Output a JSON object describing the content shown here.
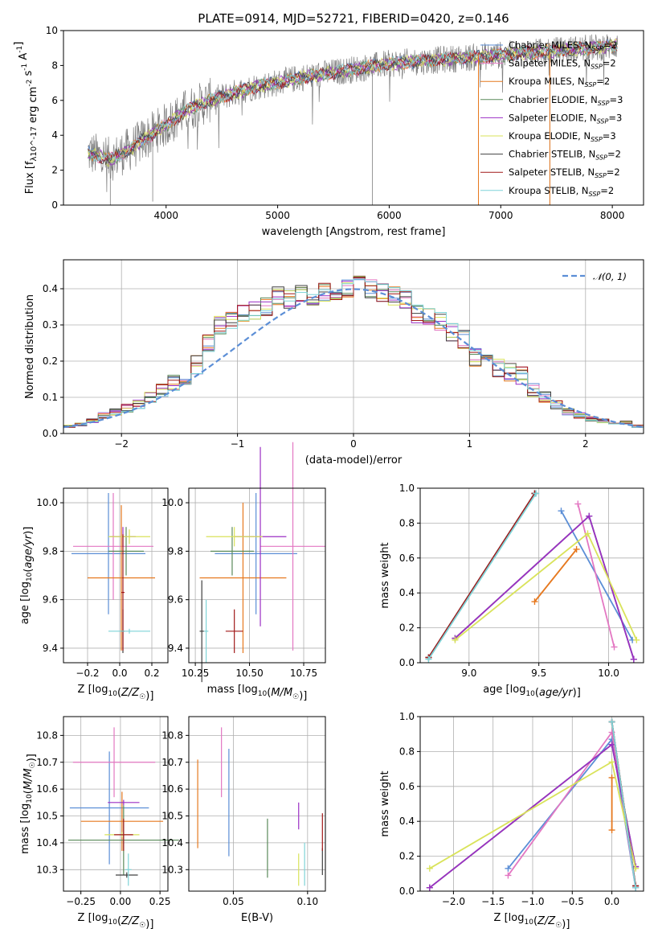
{
  "title": "PLATE=0914, MJD=52721, FIBERID=0420, z=0.146",
  "colors": {
    "Chabrier MILES": "#5b8ed6",
    "Salpeter MILES": "#e377c2",
    "Kroupa MILES": "#e6781e",
    "Chabrier ELODIE": "#5a8a5a",
    "Salpeter ELODIE": "#9b2fc4",
    "Kroupa ELODIE": "#d9e35a",
    "Chabrier STELIB": "#404040",
    "Salpeter STELIB": "#a01818",
    "Kroupa STELIB": "#7fd4d8",
    "data": "#7f7f7f",
    "normal": "#5b8ed6",
    "grid": "#b0b0b0"
  },
  "chart_data": [
    {
      "id": "spectrum",
      "type": "line",
      "xlabel": "wavelength [Angstrom, rest frame]",
      "ylabel": "Flux [f_λ10^-17 erg cm^-2 s^-1 A^-1]",
      "xlim": [
        3080,
        8280
      ],
      "ylim": [
        0,
        10
      ],
      "xticks": [
        4000,
        5000,
        6000,
        7000,
        8000
      ],
      "yticks": [
        0,
        2,
        4,
        6,
        8,
        10
      ],
      "grid": false,
      "legend_position": "top-right",
      "legend": [
        {
          "name": "Chabrier MILES, N_SSP=2",
          "base": "Chabrier MILES, N",
          "sub": "SSP",
          "tail": "=2",
          "key": "Chabrier MILES"
        },
        {
          "name": "Salpeter MILES, N_SSP=2",
          "base": "Salpeter MILES, N",
          "sub": "SSP",
          "tail": "=2",
          "key": "Salpeter MILES"
        },
        {
          "name": "Kroupa MILES, N_SSP=2",
          "base": "Kroupa MILES, N",
          "sub": "SSP",
          "tail": "=2",
          "key": "Kroupa MILES"
        },
        {
          "name": "Chabrier ELODIE, N_SSP=3",
          "base": "Chabrier ELODIE, N",
          "sub": "SSP",
          "tail": "=3",
          "key": "Chabrier ELODIE"
        },
        {
          "name": "Salpeter ELODIE, N_SSP=3",
          "base": "Salpeter ELODIE, N",
          "sub": "SSP",
          "tail": "=3",
          "key": "Salpeter ELODIE"
        },
        {
          "name": "Kroupa ELODIE, N_SSP=3",
          "base": "Kroupa ELODIE, N",
          "sub": "SSP",
          "tail": "=3",
          "key": "Kroupa ELODIE"
        },
        {
          "name": "Chabrier STELIB, N_SSP=2",
          "base": "Chabrier STELIB, N",
          "sub": "SSP",
          "tail": "=2",
          "key": "Chabrier STELIB"
        },
        {
          "name": "Salpeter STELIB, N_SSP=2",
          "base": "Salpeter STELIB, N",
          "sub": "SSP",
          "tail": "=2",
          "key": "Salpeter STELIB"
        },
        {
          "name": "Kroupa STELIB, N_SSP=2",
          "base": "Kroupa STELIB, N",
          "sub": "SSP",
          "tail": "=2",
          "key": "Kroupa STELIB"
        }
      ],
      "continuum": [
        [
          3300,
          3.0
        ],
        [
          3500,
          2.6
        ],
        [
          3700,
          3.3
        ],
        [
          3900,
          4.2
        ],
        [
          4000,
          4.6
        ],
        [
          4200,
          5.5
        ],
        [
          4400,
          6.0
        ],
        [
          4600,
          6.4
        ],
        [
          4800,
          6.8
        ],
        [
          5000,
          7.0
        ],
        [
          5200,
          7.3
        ],
        [
          5400,
          7.5
        ],
        [
          5600,
          7.7
        ],
        [
          5800,
          7.9
        ],
        [
          6000,
          8.1
        ],
        [
          6200,
          8.2
        ],
        [
          6400,
          8.3
        ],
        [
          6600,
          8.4
        ],
        [
          6800,
          8.5
        ],
        [
          7000,
          8.6
        ],
        [
          7200,
          8.7
        ],
        [
          7400,
          8.8
        ],
        [
          7600,
          8.9
        ],
        [
          7800,
          9.0
        ],
        [
          8000,
          9.1
        ],
        [
          8050,
          9.2
        ]
      ],
      "model_x_range": [
        3300,
        8050
      ],
      "data_x_range": [
        3300,
        8050
      ]
    },
    {
      "id": "residuals",
      "type": "histogram",
      "xlabel": "(data-model)/error",
      "ylabel": "Normed distribution",
      "xlim": [
        -2.5,
        2.5
      ],
      "ylim": [
        0,
        0.48
      ],
      "xticks": [
        -2,
        -1,
        0,
        1,
        2
      ],
      "xticklabels": [
        "−2",
        "−1",
        "0",
        "1",
        "2"
      ],
      "yticks": [
        0.0,
        0.1,
        0.2,
        0.3,
        0.4
      ],
      "yticklabels": [
        "0.0",
        "0.1",
        "0.2",
        "0.3",
        "0.4"
      ],
      "grid": true,
      "legend_position": "top-right",
      "legend": [
        {
          "name": "𝒩(0, 1)",
          "label": "𝒩(0, 1)",
          "style": "dashed"
        }
      ],
      "bin_edges_start": -2.5,
      "bin_width": 0.1,
      "envelope": [
        0.02,
        0.025,
        0.035,
        0.05,
        0.06,
        0.07,
        0.08,
        0.1,
        0.12,
        0.14,
        0.16,
        0.19,
        0.25,
        0.3,
        0.31,
        0.33,
        0.34,
        0.35,
        0.38,
        0.37,
        0.39,
        0.38,
        0.39,
        0.38,
        0.4,
        0.41,
        0.4,
        0.39,
        0.38,
        0.37,
        0.33,
        0.32,
        0.31,
        0.28,
        0.26,
        0.21,
        0.2,
        0.18,
        0.17,
        0.16,
        0.12,
        0.1,
        0.08,
        0.06,
        0.05,
        0.04,
        0.035,
        0.03,
        0.03,
        0.02
      ]
    },
    {
      "id": "age-vs-Z",
      "type": "errorbar",
      "xlabel": "Z [log10(Z/Z☉)]",
      "ylabel": "age [log10(age/yr)]",
      "xlim": [
        -0.35,
        0.3
      ],
      "ylim": [
        9.34,
        10.06
      ],
      "xticks": [
        -0.2,
        0.0,
        0.2
      ],
      "xticklabels": [
        "−0.2",
        "0.0",
        "0.2"
      ],
      "yticks": [
        9.4,
        9.6,
        9.8,
        10.0
      ],
      "yticklabels": [
        "9.4",
        "9.6",
        "9.8",
        "10.0"
      ],
      "grid": true,
      "points": [
        {
          "key": "Chabrier MILES",
          "x": -0.07,
          "y": 9.79,
          "xerr": 0.23,
          "yerr": 0.25
        },
        {
          "key": "Salpeter MILES",
          "x": -0.04,
          "y": 9.82,
          "xerr": 0.25,
          "yerr": 0.22
        },
        {
          "key": "Kroupa MILES",
          "x": 0.01,
          "y": 9.69,
          "xerr": 0.21,
          "yerr": 0.3
        },
        {
          "key": "Chabrier ELODIE",
          "x": 0.04,
          "y": 9.8,
          "xerr": 0.11,
          "yerr": 0.1
        },
        {
          "key": "Salpeter ELODIE",
          "x": 0.02,
          "y": 9.86,
          "xerr": 0.08,
          "yerr": 0.04
        },
        {
          "key": "Kroupa ELODIE",
          "x": 0.06,
          "y": 9.86,
          "xerr": 0.13,
          "yerr": 0.03
        },
        {
          "key": "Chabrier STELIB",
          "x": 0.02,
          "y": 9.47,
          "xerr": 0.01,
          "yerr": 0.09
        },
        {
          "key": "Salpeter STELIB",
          "x": 0.02,
          "y": 9.63,
          "xerr": 0.01,
          "yerr": 0.24
        },
        {
          "key": "Kroupa STELIB",
          "x": 0.06,
          "y": 9.47,
          "xerr": 0.13,
          "yerr": 0.01
        }
      ]
    },
    {
      "id": "age-vs-mass",
      "type": "errorbar",
      "xlabel": "mass [log10(M/M☉)]",
      "ylabel": "",
      "xlim": [
        10.22,
        10.85
      ],
      "ylim": [
        9.34,
        10.06
      ],
      "xticks": [
        10.25,
        10.5,
        10.75
      ],
      "xticklabels": [
        "10.25",
        "10.50",
        "10.75"
      ],
      "yticks": [
        9.4,
        9.6,
        9.8,
        10.0
      ],
      "yticklabels": [
        "9.4",
        "9.6",
        "9.8",
        "10.0"
      ],
      "grid": true,
      "points": [
        {
          "key": "Chabrier MILES",
          "x": 10.53,
          "y": 9.79,
          "xerr": 0.19,
          "yerr": 0.25
        },
        {
          "key": "Salpeter MILES",
          "x": 10.7,
          "y": 9.82,
          "xerr": 0.15,
          "yerr": 0.43
        },
        {
          "key": "Kroupa MILES",
          "x": 10.47,
          "y": 9.69,
          "xerr": 0.2,
          "yerr": 0.31
        },
        {
          "key": "Chabrier ELODIE",
          "x": 10.42,
          "y": 9.8,
          "xerr": 0.1,
          "yerr": 0.1
        },
        {
          "key": "Salpeter ELODIE",
          "x": 10.55,
          "y": 9.86,
          "xerr": 0.12,
          "yerr": 0.37
        },
        {
          "key": "Kroupa ELODIE",
          "x": 10.43,
          "y": 9.86,
          "xerr": 0.13,
          "yerr": 0.04
        },
        {
          "key": "Chabrier STELIB",
          "x": 10.28,
          "y": 9.47,
          "xerr": 0.01,
          "yerr": 0.21
        },
        {
          "key": "Salpeter STELIB",
          "x": 10.43,
          "y": 9.47,
          "xerr": 0.04,
          "yerr": 0.09
        },
        {
          "key": "Kroupa STELIB",
          "x": 10.3,
          "y": 9.47,
          "xerr": 0.01,
          "yerr": 0.13
        }
      ]
    },
    {
      "id": "mass-weight-vs-age",
      "type": "line",
      "xlabel": "age [log10(age/yr)]",
      "ylabel": "mass weight",
      "xlim": [
        8.65,
        10.25
      ],
      "ylim": [
        0,
        1
      ],
      "xticks": [
        9.0,
        9.5,
        10.0
      ],
      "xticklabels": [
        "9.0",
        "9.5",
        "10.0"
      ],
      "yticks": [
        0.0,
        0.2,
        0.4,
        0.6,
        0.8,
        1.0
      ],
      "yticklabels": [
        "0.0",
        "0.2",
        "0.4",
        "0.6",
        "0.8",
        "1.0"
      ],
      "grid": true,
      "series": [
        {
          "key": "Chabrier MILES",
          "x": [
            9.66,
            10.17
          ],
          "y": [
            0.87,
            0.13
          ]
        },
        {
          "key": "Salpeter MILES",
          "x": [
            9.78,
            10.04
          ],
          "y": [
            0.91,
            0.09
          ]
        },
        {
          "key": "Kroupa MILES",
          "x": [
            9.47,
            9.77
          ],
          "y": [
            0.35,
            0.65
          ]
        },
        {
          "key": "Chabrier ELODIE",
          "x": [
            8.9,
            9.86,
            10.18
          ],
          "y": [
            0.14,
            0.84,
            0.02
          ]
        },
        {
          "key": "Salpeter ELODIE",
          "x": [
            8.9,
            9.86,
            10.18
          ],
          "y": [
            0.14,
            0.84,
            0.02
          ]
        },
        {
          "key": "Kroupa ELODIE",
          "x": [
            8.9,
            9.85,
            10.2
          ],
          "y": [
            0.13,
            0.74,
            0.13
          ]
        },
        {
          "key": "Chabrier STELIB",
          "x": [
            8.71,
            9.47
          ],
          "y": [
            0.03,
            0.97
          ]
        },
        {
          "key": "Salpeter STELIB",
          "x": [
            8.71,
            9.47
          ],
          "y": [
            0.03,
            0.97
          ]
        },
        {
          "key": "Kroupa STELIB",
          "x": [
            8.71,
            9.48
          ],
          "y": [
            0.02,
            0.97
          ]
        }
      ]
    },
    {
      "id": "mass-vs-Z",
      "type": "errorbar",
      "xlabel": "Z [log10(Z/Z☉)]",
      "ylabel": "mass [log10(M/M☉)]",
      "xlim": [
        -0.36,
        0.3
      ],
      "ylim": [
        10.22,
        10.87
      ],
      "xticks": [
        -0.25,
        0.0,
        0.25
      ],
      "xticklabels": [
        "−0.25",
        "0.00",
        "0.25"
      ],
      "yticks": [
        10.3,
        10.4,
        10.5,
        10.6,
        10.7,
        10.8
      ],
      "yticklabels": [
        "10.3",
        "10.4",
        "10.5",
        "10.6",
        "10.7",
        "10.8"
      ],
      "grid": true,
      "points": [
        {
          "key": "Chabrier MILES",
          "x": -0.07,
          "y": 10.53,
          "xerr": 0.25,
          "yerr": 0.21
        },
        {
          "key": "Salpeter MILES",
          "x": -0.04,
          "y": 10.7,
          "xerr": 0.26,
          "yerr": 0.13
        },
        {
          "key": "Kroupa MILES",
          "x": 0.01,
          "y": 10.48,
          "xerr": 0.26,
          "yerr": 0.11
        },
        {
          "key": "Chabrier ELODIE",
          "x": 0.02,
          "y": 10.41,
          "xerr": 0.35,
          "yerr": 0.13
        },
        {
          "key": "Salpeter ELODIE",
          "x": 0.02,
          "y": 10.55,
          "xerr": 0.1,
          "yerr": 0.01
        },
        {
          "key": "Kroupa ELODIE",
          "x": 0.01,
          "y": 10.43,
          "xerr": 0.11,
          "yerr": 0.01
        },
        {
          "key": "Chabrier STELIB",
          "x": 0.04,
          "y": 10.28,
          "xerr": 0.07,
          "yerr": 0.01
        },
        {
          "key": "Salpeter STELIB",
          "x": 0.02,
          "y": 10.43,
          "xerr": 0.06,
          "yerr": 0.06
        },
        {
          "key": "Kroupa STELIB",
          "x": 0.05,
          "y": 10.3,
          "xerr": 0.02,
          "yerr": 0.06
        }
      ]
    },
    {
      "id": "mass-vs-EBV",
      "type": "errorbar",
      "xlabel": "E(B-V)",
      "ylabel": "",
      "xlim": [
        0.02,
        0.112
      ],
      "ylim": [
        10.22,
        10.87
      ],
      "xticks": [
        0.05,
        0.1
      ],
      "xticklabels": [
        "0.05",
        "0.10"
      ],
      "yticks": [
        10.3,
        10.4,
        10.5,
        10.6,
        10.7,
        10.8
      ],
      "yticklabels": [
        "10.3",
        "10.4",
        "10.5",
        "10.6",
        "10.7",
        "10.8"
      ],
      "grid": true,
      "points": [
        {
          "key": "Chabrier MILES",
          "x": 0.047,
          "y": 10.55,
          "xerr": 0,
          "yerr": 0.2
        },
        {
          "key": "Salpeter MILES",
          "x": 0.042,
          "y": 10.7,
          "xerr": 0,
          "yerr": 0.13
        },
        {
          "key": "Kroupa MILES",
          "x": 0.026,
          "y": 10.545,
          "xerr": 0,
          "yerr": 0.165
        },
        {
          "key": "Chabrier ELODIE",
          "x": 0.073,
          "y": 10.38,
          "xerr": 0,
          "yerr": 0.11
        },
        {
          "key": "Salpeter ELODIE",
          "x": 0.094,
          "y": 10.5,
          "xerr": 0,
          "yerr": 0.05
        },
        {
          "key": "Kroupa ELODIE",
          "x": 0.094,
          "y": 10.3,
          "xerr": 0,
          "yerr": 0.06
        },
        {
          "key": "Chabrier STELIB",
          "x": 0.11,
          "y": 10.33,
          "xerr": 0,
          "yerr": 0.05
        },
        {
          "key": "Salpeter STELIB",
          "x": 0.11,
          "y": 10.44,
          "xerr": 0,
          "yerr": 0.07
        },
        {
          "key": "Kroupa STELIB",
          "x": 0.098,
          "y": 10.32,
          "xerr": 0,
          "yerr": 0.08
        }
      ]
    },
    {
      "id": "mass-weight-vs-Z",
      "type": "line",
      "xlabel": "Z [log10(Z/Z☉)]",
      "ylabel": "mass weight",
      "xlim": [
        -2.42,
        0.4
      ],
      "ylim": [
        0,
        1
      ],
      "xticks": [
        -2.0,
        -1.5,
        -1.0,
        -0.5,
        0.0
      ],
      "xticklabels": [
        "−2.0",
        "−1.5",
        "−1.0",
        "−0.5",
        "0.0"
      ],
      "yticks": [
        0.0,
        0.2,
        0.4,
        0.6,
        0.8,
        1.0
      ],
      "yticklabels": [
        "0.0",
        "0.2",
        "0.4",
        "0.6",
        "0.8",
        "1.0"
      ],
      "grid": true,
      "series": [
        {
          "key": "Chabrier MILES",
          "x": [
            -1.31,
            0.0,
            0.3
          ],
          "y": [
            0.13,
            0.87,
            0.02
          ]
        },
        {
          "key": "Salpeter MILES",
          "x": [
            -1.31,
            0.0,
            0.3
          ],
          "y": [
            0.09,
            0.91,
            0.02
          ]
        },
        {
          "key": "Kroupa MILES",
          "x": [
            0.0,
            0.0
          ],
          "y": [
            0.35,
            0.65
          ]
        },
        {
          "key": "Chabrier ELODIE",
          "x": [
            -2.3,
            0.0,
            0.3
          ],
          "y": [
            0.02,
            0.84,
            0.14
          ]
        },
        {
          "key": "Salpeter ELODIE",
          "x": [
            -2.3,
            0.0,
            0.3
          ],
          "y": [
            0.02,
            0.84,
            0.14
          ]
        },
        {
          "key": "Kroupa ELODIE",
          "x": [
            -2.3,
            0.0,
            0.3
          ],
          "y": [
            0.13,
            0.74,
            0.13
          ]
        },
        {
          "key": "Chabrier STELIB",
          "x": [
            0.0,
            0.3
          ],
          "y": [
            0.97,
            0.03
          ]
        },
        {
          "key": "Salpeter STELIB",
          "x": [
            0.0,
            0.3
          ],
          "y": [
            0.97,
            0.03
          ]
        },
        {
          "key": "Kroupa STELIB",
          "x": [
            0.0,
            0.3
          ],
          "y": [
            0.97,
            0.02
          ]
        }
      ]
    }
  ]
}
